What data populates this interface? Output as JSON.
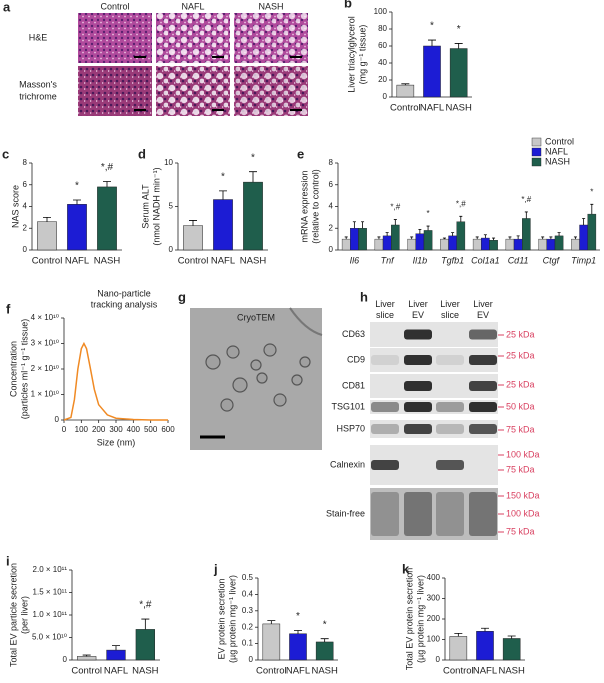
{
  "figure": {
    "a": {
      "letter": "a",
      "columns": [
        "Control",
        "NAFL",
        "NASH"
      ],
      "rows": [
        "H&E",
        "Masson's trichrome"
      ]
    },
    "g": {
      "letter": "g",
      "title": "CryoTEM"
    },
    "h": {
      "letter": "h",
      "columns": [
        "Liver slice",
        "Liver EV",
        "Liver slice",
        "Liver EV"
      ],
      "rows": [
        {
          "label": "CD63",
          "markers": [
            "25 kDa"
          ]
        },
        {
          "label": "CD9",
          "markers": [
            "25 kDa"
          ]
        },
        {
          "label": "CD81",
          "markers": [
            "25 kDa"
          ]
        },
        {
          "label": "TSG101",
          "markers": [
            "50 kDa"
          ]
        },
        {
          "label": "HSP70",
          "markers": [
            "75 kDa"
          ]
        },
        {
          "label": "Calnexin",
          "markers": [
            "100 kDa",
            "75 kDa"
          ]
        },
        {
          "label": "Stain-free",
          "markers": [
            "150 kDa",
            "100 kDa",
            "75 kDa"
          ]
        }
      ]
    }
  },
  "chart_data": [
    {
      "panel": "b",
      "type": "bar",
      "y_label": [
        "Liver triacylglycerol",
        "(mg g⁻¹ tissue)"
      ],
      "categories": [
        "Control",
        "NAFL",
        "NASH"
      ],
      "values": [
        14,
        60,
        57
      ],
      "errors": [
        1.5,
        7,
        6
      ],
      "colors": [
        "#c8c8c8",
        "#1c1cd4",
        "#1f5e4c"
      ],
      "annotations": [
        null,
        "*",
        "*"
      ],
      "ylim": [
        0,
        100
      ],
      "yticks": [
        0,
        20,
        40,
        60,
        80,
        100
      ]
    },
    {
      "panel": "c",
      "type": "bar",
      "y_label": [
        "NAS score"
      ],
      "categories": [
        "Control",
        "NAFL",
        "NASH"
      ],
      "values": [
        2.6,
        4.2,
        5.8
      ],
      "errors": [
        0.4,
        0.4,
        0.5
      ],
      "colors": [
        "#c8c8c8",
        "#1c1cd4",
        "#1f5e4c"
      ],
      "annotations": [
        null,
        "*",
        "*,#"
      ],
      "ylim": [
        0,
        8
      ],
      "yticks": [
        0,
        2,
        4,
        6,
        8
      ]
    },
    {
      "panel": "d",
      "type": "bar",
      "y_label": [
        "Serum ALT",
        "(nmol NADH min⁻¹)"
      ],
      "categories": [
        "Control",
        "NAFL",
        "NASH"
      ],
      "values": [
        2.8,
        5.8,
        7.8
      ],
      "errors": [
        0.6,
        1.0,
        1.2
      ],
      "colors": [
        "#c8c8c8",
        "#1c1cd4",
        "#1f5e4c"
      ],
      "annotations": [
        null,
        "*",
        "*"
      ],
      "ylim": [
        0,
        10
      ],
      "yticks": [
        0,
        5,
        10
      ]
    },
    {
      "panel": "e",
      "type": "grouped_bar",
      "y_label": [
        "mRNA expression",
        "(relative to control)"
      ],
      "categories": [
        "Il6",
        "Tnf",
        "Il1b",
        "Tgfb1",
        "Col1a1",
        "Cd11",
        "Ctgf",
        "Timp1"
      ],
      "series": [
        {
          "name": "Control",
          "color": "#c8c8c8",
          "values": [
            1,
            1,
            1,
            1,
            1,
            1,
            1,
            1
          ],
          "errors": [
            0.2,
            0.2,
            0.2,
            0.1,
            0.2,
            0.2,
            0.2,
            0.2
          ]
        },
        {
          "name": "NAFL",
          "color": "#1c1cd4",
          "values": [
            2.0,
            1.3,
            1.5,
            1.3,
            1.1,
            1.0,
            1.0,
            2.3
          ],
          "errors": [
            0.6,
            0.3,
            0.4,
            0.3,
            0.3,
            0.3,
            0.2,
            0.6
          ]
        },
        {
          "name": "NASH",
          "color": "#1f5e4c",
          "values": [
            2.0,
            2.3,
            1.8,
            2.6,
            0.9,
            2.9,
            1.3,
            3.3
          ],
          "errors": [
            0.6,
            0.5,
            0.4,
            0.5,
            0.2,
            0.6,
            0.3,
            0.9
          ],
          "annotations": [
            null,
            "*,#",
            "*",
            "*,#",
            null,
            "*,#",
            null,
            "*"
          ]
        }
      ],
      "ylim": [
        0,
        8
      ],
      "yticks": [
        0,
        2,
        4,
        6,
        8
      ]
    },
    {
      "panel": "f",
      "type": "line",
      "title": [
        "Nano-particle",
        "tracking analysis"
      ],
      "y_label": [
        "Concentration",
        "(particles ml⁻¹ g⁻¹ tissue)"
      ],
      "x_label": "Size (nm)",
      "color": "#f08a24",
      "x": [
        0,
        40,
        60,
        80,
        100,
        115,
        130,
        150,
        175,
        200,
        250,
        300,
        400,
        500,
        600
      ],
      "values": [
        0,
        1000000000,
        8000000000,
        20000000000,
        28000000000,
        30000000000,
        28000000000,
        21000000000,
        12000000000,
        6000000000,
        2000000000,
        700000000,
        200000000,
        0,
        0
      ],
      "xlim": [
        0,
        600
      ],
      "xticks": [
        0,
        100,
        200,
        300,
        400,
        500,
        600
      ],
      "ylim": [
        0,
        40000000000
      ],
      "yticks": [
        0,
        {
          "value": 10000000000,
          "label": "1 × 10¹⁰"
        },
        {
          "value": 20000000000,
          "label": "2 × 10¹⁰"
        },
        {
          "value": 30000000000,
          "label": "3 × 10¹⁰"
        },
        {
          "value": 40000000000,
          "label": "4 × 10¹⁰"
        }
      ]
    },
    {
      "panel": "i",
      "type": "bar",
      "y_label": [
        "Total EV particle secretion",
        "(per liver)"
      ],
      "categories": [
        "Control",
        "NAFL",
        "NASH"
      ],
      "values": [
        8000000000,
        22000000000,
        68000000000
      ],
      "errors": [
        3000000000,
        10000000000,
        23000000000
      ],
      "colors": [
        "#c8c8c8",
        "#1c1cd4",
        "#1f5e4c"
      ],
      "annotations": [
        null,
        null,
        "*,#"
      ],
      "ylim": [
        0,
        200000000000
      ],
      "yticks": [
        0,
        {
          "value": 50000000000,
          "label": "5.0 × 10¹⁰"
        },
        {
          "value": 100000000000,
          "label": "1.0 × 10¹¹"
        },
        {
          "value": 150000000000,
          "label": "1.5 × 10¹¹"
        },
        {
          "value": 200000000000,
          "label": "2.0 × 10¹¹"
        }
      ]
    },
    {
      "panel": "j",
      "type": "bar",
      "y_label": [
        "EV protein secretion",
        "(µg protein mg⁻¹ liver)"
      ],
      "categories": [
        "Control",
        "NAFL",
        "NASH"
      ],
      "values": [
        0.22,
        0.16,
        0.11
      ],
      "errors": [
        0.02,
        0.02,
        0.02
      ],
      "colors": [
        "#c8c8c8",
        "#1c1cd4",
        "#1f5e4c"
      ],
      "annotations": [
        null,
        "*",
        "*"
      ],
      "ylim": [
        0,
        0.5
      ],
      "yticks": [
        0,
        0.1,
        0.2,
        0.3,
        0.4,
        0.5
      ]
    },
    {
      "panel": "k",
      "type": "bar",
      "y_label": [
        "Total EV protein secretion",
        "(µg protein mg⁻¹ liver)"
      ],
      "categories": [
        "Control",
        "NAFL",
        "NASH"
      ],
      "values": [
        115,
        140,
        105
      ],
      "errors": [
        15,
        15,
        12
      ],
      "colors": [
        "#c8c8c8",
        "#1c1cd4",
        "#1f5e4c"
      ],
      "annotations": [
        null,
        null,
        null
      ],
      "ylim": [
        0,
        400
      ],
      "yticks": [
        0,
        100,
        200,
        300,
        400
      ]
    }
  ]
}
